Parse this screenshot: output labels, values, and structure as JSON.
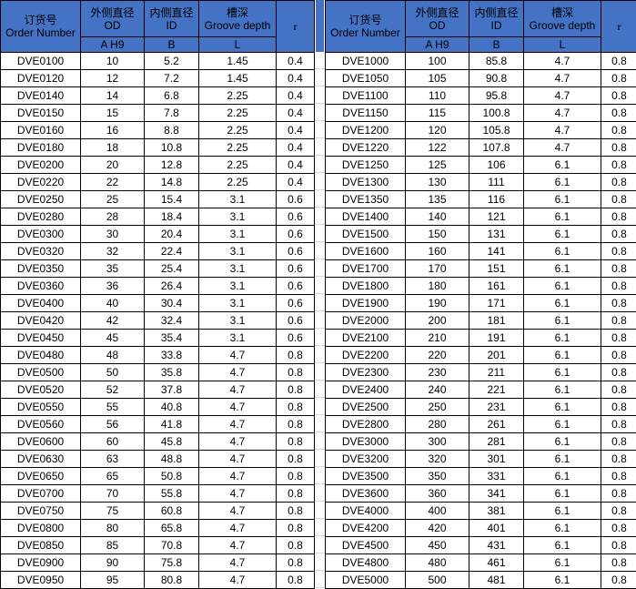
{
  "colors": {
    "header_bg": "#4472C4",
    "grid_line": "#000000",
    "gutter_grid_line": "#d9d9d9"
  },
  "header": {
    "order_number_zh": "订货号",
    "order_number_en": "Order Number",
    "od_zh": "外侧直径",
    "od_en": "OD",
    "od_sub": "A  H9",
    "id_zh": "内侧直径",
    "id_en": "ID",
    "id_sub": "B",
    "groove_zh": "槽深",
    "groove_en": "Groove depth",
    "groove_sub": "L",
    "r_label": "r"
  },
  "left_table": {
    "small_od_rows": [
      28,
      29,
      30
    ],
    "rows": [
      [
        "DVE0100",
        "10",
        "5.2",
        "1.45",
        "0.4"
      ],
      [
        "DVE0120",
        "12",
        "7.2",
        "1.45",
        "0.4"
      ],
      [
        "DVE0140",
        "14",
        "6.8",
        "2.25",
        "0.4"
      ],
      [
        "DVE0150",
        "15",
        "7.8",
        "2.25",
        "0.4"
      ],
      [
        "DVE0160",
        "16",
        "8.8",
        "2.25",
        "0.4"
      ],
      [
        "DVE0180",
        "18",
        "10.8",
        "2.25",
        "0.4"
      ],
      [
        "DVE0200",
        "20",
        "12.8",
        "2.25",
        "0.4"
      ],
      [
        "DVE0220",
        "22",
        "14.8",
        "2.25",
        "0.4"
      ],
      [
        "DVE0250",
        "25",
        "15.4",
        "3.1",
        "0.6"
      ],
      [
        "DVE0280",
        "28",
        "18.4",
        "3.1",
        "0.6"
      ],
      [
        "DVE0300",
        "30",
        "20.4",
        "3.1",
        "0.6"
      ],
      [
        "DVE0320",
        "32",
        "22.4",
        "3.1",
        "0.6"
      ],
      [
        "DVE0350",
        "35",
        "25.4",
        "3.1",
        "0.6"
      ],
      [
        "DVE0360",
        "36",
        "26.4",
        "3.1",
        "0.6"
      ],
      [
        "DVE0400",
        "40",
        "30.4",
        "3.1",
        "0.6"
      ],
      [
        "DVE0420",
        "42",
        "32.4",
        "3.1",
        "0.6"
      ],
      [
        "DVE0450",
        "45",
        "35.4",
        "3.1",
        "0.6"
      ],
      [
        "DVE0480",
        "48",
        "33.8",
        "4.7",
        "0.8"
      ],
      [
        "DVE0500",
        "50",
        "35.8",
        "4.7",
        "0.8"
      ],
      [
        "DVE0520",
        "52",
        "37.8",
        "4.7",
        "0.8"
      ],
      [
        "DVE0550",
        "55",
        "40.8",
        "4.7",
        "0.8"
      ],
      [
        "DVE0560",
        "56",
        "41.8",
        "4.7",
        "0.8"
      ],
      [
        "DVE0600",
        "60",
        "45.8",
        "4.7",
        "0.8"
      ],
      [
        "DVE0630",
        "63",
        "48.8",
        "4.7",
        "0.8"
      ],
      [
        "DVE0650",
        "65",
        "50.8",
        "4.7",
        "0.8"
      ],
      [
        "DVE0700",
        "70",
        "55.8",
        "4.7",
        "0.8"
      ],
      [
        "DVE0750",
        "75",
        "60.8",
        "4.7",
        "0.8"
      ],
      [
        "DVE0800",
        "80",
        "65.8",
        "4.7",
        "0.8"
      ],
      [
        "DVE0850",
        "85",
        "70.8",
        "4.7",
        "0.8"
      ],
      [
        "DVE0900",
        "90",
        "75.8",
        "4.7",
        "0.8"
      ],
      [
        "DVE0950",
        "95",
        "80.8",
        "4.7",
        "0.8"
      ]
    ]
  },
  "right_table": {
    "small_od_rows": [],
    "rows": [
      [
        "DVE1000",
        "100",
        "85.8",
        "4.7",
        "0.8"
      ],
      [
        "DVE1050",
        "105",
        "90.8",
        "4.7",
        "0.8"
      ],
      [
        "DVE1100",
        "110",
        "95.8",
        "4.7",
        "0.8"
      ],
      [
        "DVE1150",
        "115",
        "100.8",
        "4.7",
        "0.8"
      ],
      [
        "DVE1200",
        "120",
        "105.8",
        "4.7",
        "0.8"
      ],
      [
        "DVE1220",
        "122",
        "107.8",
        "4.7",
        "0.8"
      ],
      [
        "DVE1250",
        "125",
        "106",
        "6.1",
        "0.8"
      ],
      [
        "DVE1300",
        "130",
        "111",
        "6.1",
        "0.8"
      ],
      [
        "DVE1350",
        "135",
        "116",
        "6.1",
        "0.8"
      ],
      [
        "DVE1400",
        "140",
        "121",
        "6.1",
        "0.8"
      ],
      [
        "DVE1500",
        "150",
        "131",
        "6.1",
        "0.8"
      ],
      [
        "DVE1600",
        "160",
        "141",
        "6.1",
        "0.8"
      ],
      [
        "DVE1700",
        "170",
        "151",
        "6.1",
        "0.8"
      ],
      [
        "DVE1800",
        "180",
        "161",
        "6.1",
        "0.8"
      ],
      [
        "DVE1900",
        "190",
        "171",
        "6.1",
        "0.8"
      ],
      [
        "DVE2000",
        "200",
        "181",
        "6.1",
        "0.8"
      ],
      [
        "DVE2100",
        "210",
        "191",
        "6.1",
        "0.8"
      ],
      [
        "DVE2200",
        "220",
        "201",
        "6.1",
        "0.8"
      ],
      [
        "DVE2300",
        "230",
        "211",
        "6.1",
        "0.8"
      ],
      [
        "DVE2400",
        "240",
        "221",
        "6.1",
        "0.8"
      ],
      [
        "DVE2500",
        "250",
        "231",
        "6.1",
        "0.8"
      ],
      [
        "DVE2800",
        "280",
        "261",
        "6.1",
        "0.8"
      ],
      [
        "DVE3000",
        "300",
        "281",
        "6.1",
        "0.8"
      ],
      [
        "DVE3200",
        "320",
        "301",
        "6.1",
        "0.8"
      ],
      [
        "DVE3500",
        "350",
        "331",
        "6.1",
        "0.8"
      ],
      [
        "DVE3600",
        "360",
        "341",
        "6.1",
        "0.8"
      ],
      [
        "DVE4000",
        "400",
        "381",
        "6.1",
        "0.8"
      ],
      [
        "DVE4200",
        "420",
        "401",
        "6.1",
        "0.8"
      ],
      [
        "DVE4500",
        "450",
        "431",
        "6.1",
        "0.8"
      ],
      [
        "DVE4800",
        "480",
        "461",
        "6.1",
        "0.8"
      ],
      [
        "DVE5000",
        "500",
        "481",
        "6.1",
        "0.8"
      ]
    ]
  }
}
